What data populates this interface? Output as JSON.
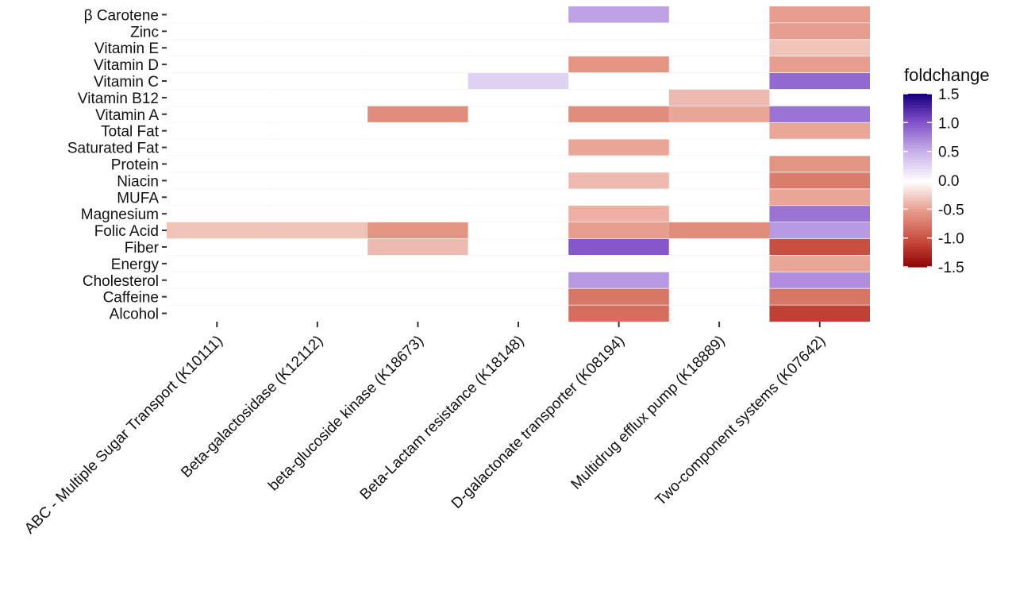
{
  "chart_data": {
    "type": "heatmap",
    "title": "",
    "xlabel": "",
    "ylabel": "",
    "categories_x": [
      "ABC - Multiple Sugar Transport (K10111)",
      "Beta-galactosidase (K12112)",
      "beta-glucoside kinase (K18673)",
      "Beta-Lactam resistance (K18148)",
      "D-galactonate transporter (K08194)",
      "Multidrug efflux pump (K18889)",
      "Two-component systems (K07642)"
    ],
    "categories_y": [
      "β Carotene",
      "Zinc",
      "Vitamin E",
      "Vitamin D",
      "Vitamin C",
      "Vitamin B12",
      "Vitamin A",
      "Total Fat",
      "Saturated Fat",
      "Protein",
      "Niacin",
      "MUFA",
      "Magnesium",
      "Folic Acid",
      "Fiber",
      "Energy",
      "Cholesterol",
      "Caffeine",
      "Alcohol"
    ],
    "values": [
      [
        null,
        null,
        null,
        null,
        0.6,
        null,
        -0.5
      ],
      [
        null,
        null,
        null,
        null,
        null,
        null,
        -0.5
      ],
      [
        null,
        null,
        null,
        null,
        null,
        null,
        -0.3
      ],
      [
        null,
        null,
        null,
        null,
        -0.55,
        null,
        -0.5
      ],
      [
        null,
        null,
        null,
        0.3,
        null,
        null,
        0.9
      ],
      [
        null,
        null,
        null,
        null,
        null,
        -0.35,
        null
      ],
      [
        null,
        null,
        -0.6,
        null,
        -0.6,
        -0.45,
        0.85
      ],
      [
        null,
        null,
        null,
        null,
        null,
        null,
        -0.45
      ],
      [
        null,
        null,
        null,
        null,
        -0.45,
        null,
        null
      ],
      [
        null,
        null,
        null,
        null,
        null,
        null,
        -0.55
      ],
      [
        null,
        null,
        null,
        null,
        -0.35,
        null,
        -0.7
      ],
      [
        null,
        null,
        null,
        null,
        null,
        null,
        -0.45
      ],
      [
        null,
        null,
        null,
        null,
        -0.4,
        null,
        0.85
      ],
      [
        -0.3,
        -0.3,
        -0.55,
        null,
        -0.5,
        -0.6,
        0.65
      ],
      [
        null,
        null,
        -0.35,
        null,
        1.0,
        null,
        -1.0
      ],
      [
        null,
        null,
        null,
        null,
        null,
        null,
        -0.45
      ],
      [
        null,
        null,
        null,
        null,
        0.65,
        null,
        0.7
      ],
      [
        null,
        null,
        null,
        null,
        -0.75,
        null,
        -0.75
      ],
      [
        null,
        null,
        null,
        null,
        -0.8,
        null,
        -1.1
      ]
    ],
    "legend": {
      "title": "foldchange",
      "ticks": [
        1.5,
        1.0,
        0.5,
        0.0,
        -0.5,
        -1.0,
        -1.5
      ],
      "tick_labels": [
        "1.5",
        "1.0",
        "0.5",
        "0.0",
        "-0.5",
        "-1.0",
        "-1.5"
      ],
      "range": [
        -1.5,
        1.5
      ],
      "colors": {
        "low": "#8b0000",
        "mid": "#ffffff",
        "high": "#1a0080"
      },
      "placement": "right"
    },
    "panel_background": "#ebebeb",
    "grid": true
  }
}
